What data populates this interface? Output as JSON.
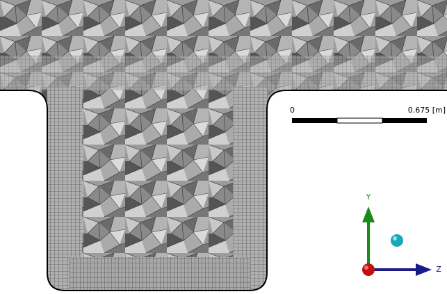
{
  "scale_bar": {
    "start_label": "0",
    "end_label": "0.675 [m]"
  },
  "triad": {
    "y_label": "Y",
    "z_label": "Z"
  }
}
